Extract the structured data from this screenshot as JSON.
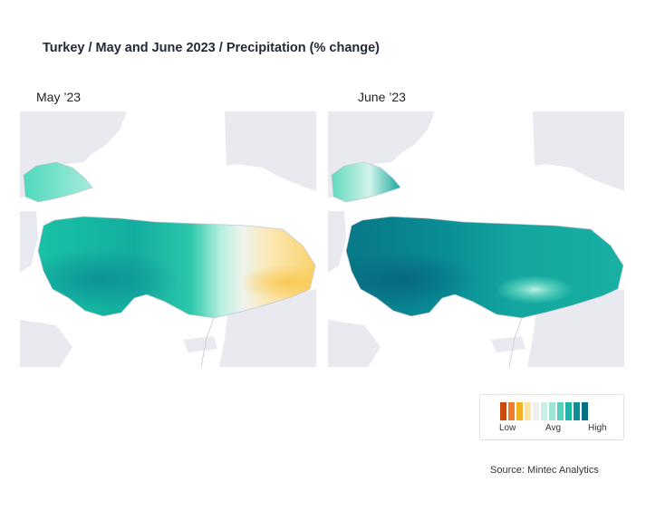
{
  "title": "Turkey / May and June 2023 / Precipitation (% change)",
  "panels": [
    {
      "label": "May ’23",
      "pattern": "wet west and centre, near average mid-east, drier (low) in the east"
    },
    {
      "label": "June ’23",
      "pattern": "high across the country, strongest in the west, slightly lower pocket in the south-centre"
    }
  ],
  "legend": {
    "low_label": "Low",
    "avg_label": "Avg",
    "high_label": "High",
    "colors": [
      "#c84a0c",
      "#ef7d2b",
      "#f4b321",
      "#fde4a0",
      "#eef1ee",
      "#c7f1e8",
      "#9fe6d6",
      "#55d2bd",
      "#1fb5a5",
      "#0a8f95",
      "#066f84"
    ]
  },
  "source": "Source: Mintec Analytics"
}
